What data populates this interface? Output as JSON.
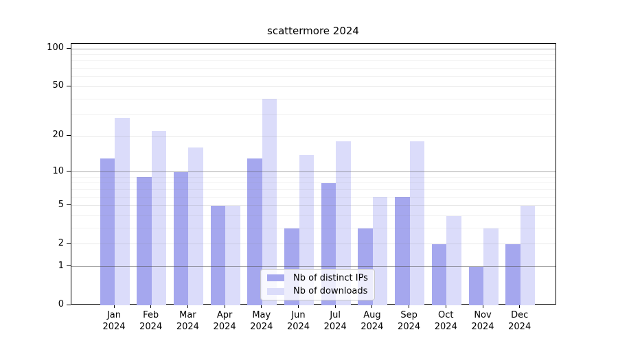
{
  "title": "scattermore 2024",
  "chart_data": {
    "type": "bar",
    "title": "scattermore 2024",
    "categories": [
      {
        "month": "Jan",
        "year": "2024"
      },
      {
        "month": "Feb",
        "year": "2024"
      },
      {
        "month": "Mar",
        "year": "2024"
      },
      {
        "month": "Apr",
        "year": "2024"
      },
      {
        "month": "May",
        "year": "2024"
      },
      {
        "month": "Jun",
        "year": "2024"
      },
      {
        "month": "Jul",
        "year": "2024"
      },
      {
        "month": "Aug",
        "year": "2024"
      },
      {
        "month": "Sep",
        "year": "2024"
      },
      {
        "month": "Oct",
        "year": "2024"
      },
      {
        "month": "Nov",
        "year": "2024"
      },
      {
        "month": "Dec",
        "year": "2024"
      }
    ],
    "series": [
      {
        "name": "Nb of distinct IPs",
        "color": "#a5a7ee",
        "values": [
          13,
          9,
          10,
          5,
          13,
          3,
          8,
          3,
          6,
          2,
          1,
          2
        ]
      },
      {
        "name": "Nb of downloads",
        "color": "#dbdcfa",
        "values": [
          28,
          22,
          16,
          5,
          40,
          14,
          18,
          6,
          18,
          4,
          3,
          5
        ]
      }
    ],
    "xlabel": "",
    "ylabel": "",
    "yscale": "log1p",
    "ylim": [
      0,
      100
    ],
    "yticks": [
      0,
      1,
      2,
      5,
      10,
      20,
      50,
      100
    ],
    "yticks_major_grid": [
      1,
      10,
      100
    ],
    "yticks_minor": [
      3,
      4,
      6,
      7,
      8,
      9,
      30,
      40,
      60,
      70,
      80,
      90
    ],
    "grid": "horizontal",
    "legend_position": "lower center"
  }
}
